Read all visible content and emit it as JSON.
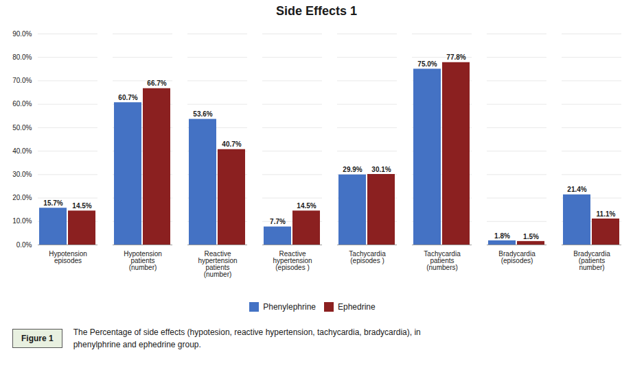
{
  "chart_data": {
    "type": "bar",
    "title": "Side Effects 1",
    "categories": [
      "Hypotension\nepisodes",
      "Hypotension\npatients\n(number)",
      "Reactive\nhypertension\npatients\n(number)",
      "Reactive\nhypertension\n(episodes )",
      "Tachycardia\n(episodes )",
      "Tachycardia\npatients\n(numbers)",
      "Bradycardia\n(episodes)",
      "Bradycardia\n(patients\nnumber)"
    ],
    "series": [
      {
        "name": "Phenylephrine",
        "color": "#4472c4",
        "values": [
          15.7,
          60.7,
          53.6,
          7.7,
          29.9,
          75.0,
          1.8,
          21.4
        ],
        "value_labels": [
          "15.7%",
          "60.7%",
          "53.6%",
          "7.7%",
          "29.9%",
          "75.0%",
          "1.8%",
          "21.4%"
        ]
      },
      {
        "name": "Ephedrine",
        "color": "#8b2020",
        "values": [
          14.5,
          66.7,
          40.7,
          14.5,
          30.1,
          77.8,
          1.5,
          11.1
        ],
        "value_labels": [
          "14.5%",
          "66.7%",
          "40.7%",
          "14.5%",
          "30.1%",
          "77.8%",
          "1.5%",
          "11.1%"
        ]
      }
    ],
    "ylim": [
      0,
      90
    ],
    "yticks": [
      {
        "value": 0,
        "label": "0.0%"
      },
      {
        "value": 10,
        "label": "10.0%"
      },
      {
        "value": 20,
        "label": "20.0%"
      },
      {
        "value": 30,
        "label": "30.0%"
      },
      {
        "value": 40,
        "label": "40.0%"
      },
      {
        "value": 50,
        "label": "50.0%"
      },
      {
        "value": 60,
        "label": "60.0%"
      },
      {
        "value": 70,
        "label": "70.0%"
      },
      {
        "value": 80,
        "label": "80.0%"
      },
      {
        "value": 90,
        "label": "90.0%"
      }
    ],
    "grid": true,
    "legend": "bottom",
    "data_labels": true,
    "annotations": [
      "Figure 1",
      "The Percentage of side effects (hypotesion, reactive hypertension, tachycardia, bradycardia), in\nphenylphrine and ephedrine group."
    ]
  }
}
